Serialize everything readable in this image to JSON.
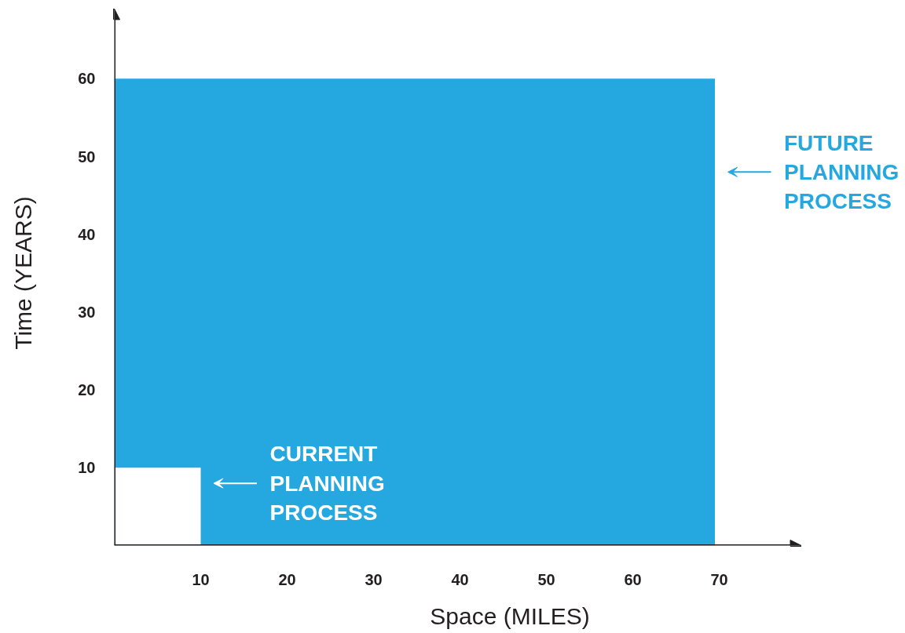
{
  "chart_data": {
    "type": "area",
    "xlabel": "Space (MILES)",
    "ylabel": "Time (YEARS)",
    "xlim": [
      0,
      79.5
    ],
    "ylim": [
      0,
      69
    ],
    "xticks": [
      10,
      20,
      30,
      40,
      50,
      60,
      70
    ],
    "yticks": [
      10,
      20,
      30,
      40,
      50,
      60
    ],
    "grid": false,
    "legend": "right",
    "series": [
      {
        "name": "FUTURE PLANNING PROCESS",
        "color": "#25a8e0",
        "x": [
          0,
          69.5
        ],
        "values": [
          60,
          60
        ]
      },
      {
        "name": "CURRENT PLANNING PROCESS",
        "color": "#ffffff",
        "x": [
          0,
          10
        ],
        "values": [
          10,
          10
        ]
      }
    ]
  }
}
